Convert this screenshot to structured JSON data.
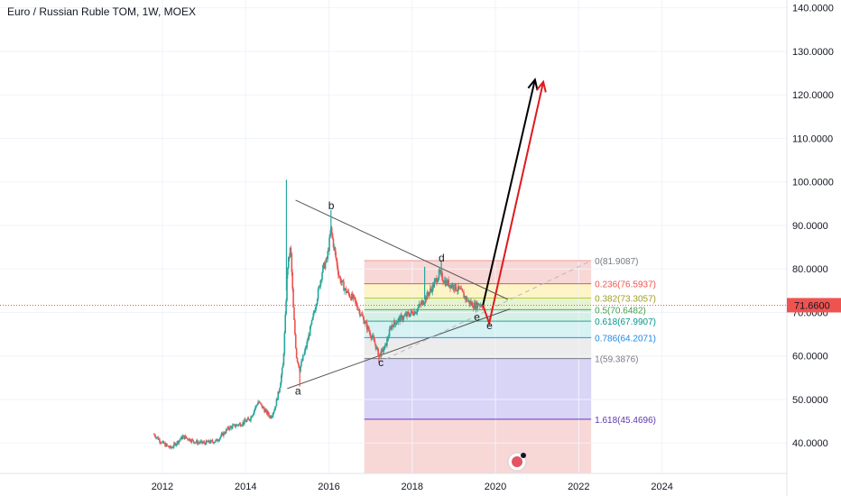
{
  "header": {
    "title": "Euro / Russian Ruble TOM, 1W, MOEX"
  },
  "price_badge": {
    "label": "71.6600",
    "value": 71.66,
    "color": "#ef5350"
  },
  "colors": {
    "up_candle": "#26a69a",
    "down_candle": "#ef5350",
    "grid": "#f0f3fa",
    "trendline": "#555555",
    "fib_dashed": "#b8b8b8",
    "arrow_bullish": "#000000",
    "arrow_alt": "#e0191f"
  },
  "watermark_icon": "tradingview-logo-icon",
  "chart_data": {
    "type": "candlestick",
    "title": "Euro / Russian Ruble TOM, 1W, MOEX",
    "x_ticks": [
      "2012",
      "2014",
      "2016",
      "2018",
      "2020",
      "2022",
      "2024"
    ],
    "x_tick_values": [
      2012,
      2014,
      2016,
      2018,
      2020,
      2022,
      2024
    ],
    "y_ticks": [
      "40.0000",
      "50.0000",
      "60.0000",
      "70.0000",
      "80.0000",
      "90.0000",
      "100.0000",
      "110.0000",
      "120.0000",
      "130.0000",
      "140.0000"
    ],
    "y_tick_values": [
      40,
      50,
      60,
      70,
      80,
      90,
      100,
      110,
      120,
      130,
      140
    ],
    "xlim": [
      2008.1,
      2027.0
    ],
    "ylim": [
      33.0,
      141.8
    ],
    "grid": true,
    "price_series": [
      [
        2011.8,
        42
      ],
      [
        2012.0,
        40
      ],
      [
        2012.2,
        38.8
      ],
      [
        2012.5,
        41.5
      ],
      [
        2012.8,
        40.2
      ],
      [
        2013.0,
        40
      ],
      [
        2013.3,
        40.5
      ],
      [
        2013.6,
        43.5
      ],
      [
        2013.9,
        44.5
      ],
      [
        2014.1,
        45.5
      ],
      [
        2014.3,
        49.5
      ],
      [
        2014.5,
        47
      ],
      [
        2014.6,
        46
      ],
      [
        2014.7,
        48
      ],
      [
        2014.8,
        52
      ],
      [
        2014.9,
        58
      ],
      [
        2014.96,
        70
      ],
      [
        2015.0,
        80
      ],
      [
        2015.08,
        85
      ],
      [
        2015.15,
        70
      ],
      [
        2015.22,
        60
      ],
      [
        2015.3,
        57
      ],
      [
        2015.45,
        62
      ],
      [
        2015.6,
        68
      ],
      [
        2015.75,
        75
      ],
      [
        2015.85,
        80
      ],
      [
        2015.95,
        82
      ],
      [
        2016.05,
        89
      ],
      [
        2016.12,
        85
      ],
      [
        2016.25,
        78
      ],
      [
        2016.4,
        75
      ],
      [
        2016.6,
        73
      ],
      [
        2016.8,
        69
      ],
      [
        2016.95,
        66
      ],
      [
        2017.1,
        63
      ],
      [
        2017.2,
        60
      ],
      [
        2017.35,
        62
      ],
      [
        2017.5,
        67
      ],
      [
        2017.7,
        68.5
      ],
      [
        2017.9,
        69.5
      ],
      [
        2018.1,
        70.5
      ],
      [
        2018.3,
        73
      ],
      [
        2018.5,
        76
      ],
      [
        2018.65,
        79
      ],
      [
        2018.8,
        77
      ],
      [
        2019.0,
        76
      ],
      [
        2019.15,
        75
      ],
      [
        2019.35,
        72.5
      ],
      [
        2019.5,
        71.5
      ],
      [
        2019.6,
        72
      ],
      [
        2019.7,
        71.66
      ]
    ],
    "spike_highs": [
      [
        2014.98,
        100.5
      ],
      [
        2016.05,
        93.5
      ],
      [
        2018.3,
        80.5
      ],
      [
        2018.7,
        82
      ]
    ],
    "spike_lows": [
      [
        2015.3,
        53
      ],
      [
        2017.2,
        58.5
      ]
    ],
    "fibonacci": {
      "x_range": [
        2016.85,
        2022.3
      ],
      "levels": [
        {
          "label": "0(81.9087)",
          "ratio": 0,
          "price": 81.9087,
          "color": "#ef9a9a",
          "text_color": "#787b86"
        },
        {
          "label": "0.236(76.5937)",
          "ratio": 0.236,
          "price": 76.5937,
          "color": "#ef5350",
          "text_color": "#ef5350"
        },
        {
          "label": "0.382(73.3057)",
          "ratio": 0.382,
          "price": 73.3057,
          "color": "#c0ca33",
          "text_color": "#9e9d24"
        },
        {
          "label": "0.5(70.6482)",
          "ratio": 0.5,
          "price": 70.6482,
          "color": "#4caf50",
          "text_color": "#43a047"
        },
        {
          "label": "0.618(67.9907)",
          "ratio": 0.618,
          "price": 67.9907,
          "color": "#26a69a",
          "text_color": "#009688"
        },
        {
          "label": "0.786(64.2071)",
          "ratio": 0.786,
          "price": 64.2071,
          "color": "#2196f3",
          "text_color": "#1e88e5"
        },
        {
          "label": "1(59.3876)",
          "ratio": 1,
          "price": 59.3876,
          "color": "#787b86",
          "text_color": "#787b86"
        },
        {
          "label": "1.618(45.4696)",
          "ratio": 1.618,
          "price": 45.4696,
          "color": "#673ab7",
          "text_color": "#5e35b1"
        }
      ],
      "bands": [
        {
          "from": 81.9087,
          "to": 76.5937,
          "color": "#f8d7d7"
        },
        {
          "from": 76.5937,
          "to": 73.3057,
          "color": "#fdf4c7"
        },
        {
          "from": 73.3057,
          "to": 70.6482,
          "color": "#e4f4d3"
        },
        {
          "from": 70.6482,
          "to": 67.9907,
          "color": "#d5f0e4"
        },
        {
          "from": 67.9907,
          "to": 64.2071,
          "color": "#d6f2f2"
        },
        {
          "from": 64.2071,
          "to": 59.3876,
          "color": "#ececec"
        },
        {
          "from": 59.3876,
          "to": 45.4696,
          "color": "#d9d5f6"
        },
        {
          "from": 45.4696,
          "to": 33.0,
          "color": "#f8d7d7"
        }
      ]
    },
    "wave_points": [
      {
        "label": "a",
        "x": 2015.25,
        "y": 52,
        "text_color": "#131722"
      },
      {
        "label": "b",
        "x": 2016.05,
        "y": 94.5,
        "text_color": "#131722"
      },
      {
        "label": "c",
        "x": 2017.25,
        "y": 58.5,
        "text_color": "#131722"
      },
      {
        "label": "d",
        "x": 2018.7,
        "y": 82.5,
        "text_color": "#131722"
      },
      {
        "label": "e",
        "x": 2019.55,
        "y": 69,
        "text_color": "#131722"
      },
      {
        "label": "e",
        "x": 2019.85,
        "y": 67,
        "text_color": "#e0191f"
      }
    ],
    "trendlines": [
      {
        "name": "upper",
        "from": [
          2015.2,
          95.8
        ],
        "to": [
          2020.3,
          73.0
        ],
        "style": "solid"
      },
      {
        "name": "lower",
        "from": [
          2015.0,
          52.5
        ],
        "to": [
          2020.35,
          70.8
        ],
        "style": "solid"
      },
      {
        "name": "extension",
        "from": [
          2017.2,
          58.5
        ],
        "to": [
          2022.3,
          81.9
        ],
        "style": "dashed"
      }
    ],
    "projections": [
      {
        "name": "bullish",
        "color": "#000000",
        "points": [
          [
            2019.7,
            71.66
          ],
          [
            2020.95,
            123.5
          ]
        ]
      },
      {
        "name": "alternate",
        "color": "#e0191f",
        "points": [
          [
            2019.7,
            71.66
          ],
          [
            2019.85,
            67.5
          ],
          [
            2021.15,
            123
          ]
        ]
      }
    ]
  }
}
